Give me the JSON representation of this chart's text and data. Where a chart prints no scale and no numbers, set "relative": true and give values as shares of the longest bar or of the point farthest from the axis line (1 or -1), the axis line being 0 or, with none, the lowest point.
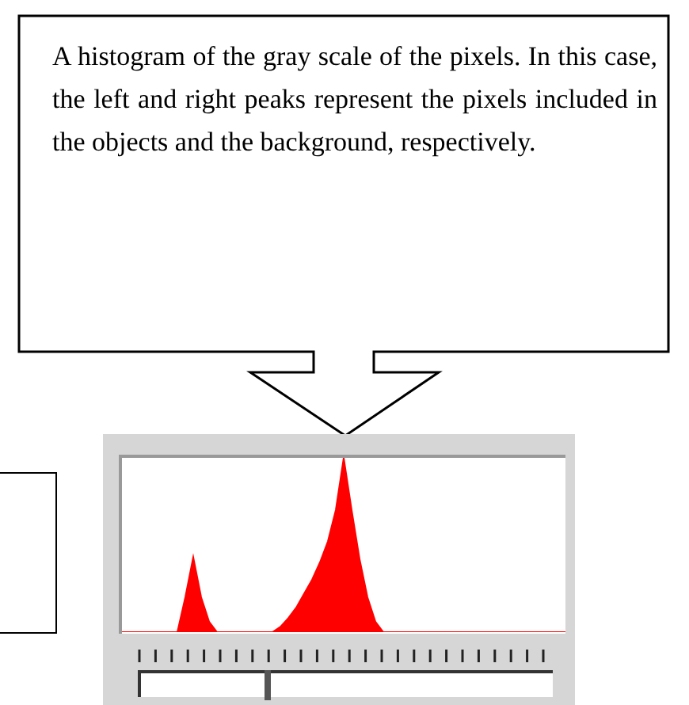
{
  "chart_data": {
    "type": "area",
    "relative": true,
    "categories": [
      null,
      null,
      null,
      null,
      null,
      null,
      null,
      null,
      null,
      null,
      null,
      null,
      null,
      null,
      null,
      null,
      null,
      null,
      null,
      null,
      null,
      null,
      null,
      null,
      null,
      null,
      null,
      null,
      null,
      null,
      null,
      null,
      null,
      null,
      null,
      null,
      null,
      null,
      null,
      null,
      null,
      null,
      null,
      null,
      null,
      null,
      null,
      null,
      null,
      null,
      null,
      null,
      null,
      null,
      null,
      null,
      null
    ],
    "values": [
      0,
      0,
      0,
      0,
      0,
      0,
      0,
      0,
      0.2,
      0.43,
      0.2,
      0.06,
      0,
      0,
      0,
      0,
      0,
      0,
      0,
      0,
      0.03,
      0.08,
      0.14,
      0.22,
      0.3,
      0.4,
      0.52,
      0.7,
      1,
      0.7,
      0.42,
      0.2,
      0.06,
      0,
      0,
      0,
      0,
      0,
      0,
      0,
      0,
      0,
      0,
      0,
      0,
      0,
      0,
      0,
      0,
      0,
      0,
      0,
      0,
      0,
      0,
      0,
      0
    ],
    "color": "#ff0000",
    "annotations": [
      "A histogram of the gray scale of the pixels. In this case, the left and right peaks represent the pixels included in the objects and the background, respectively."
    ]
  }
}
